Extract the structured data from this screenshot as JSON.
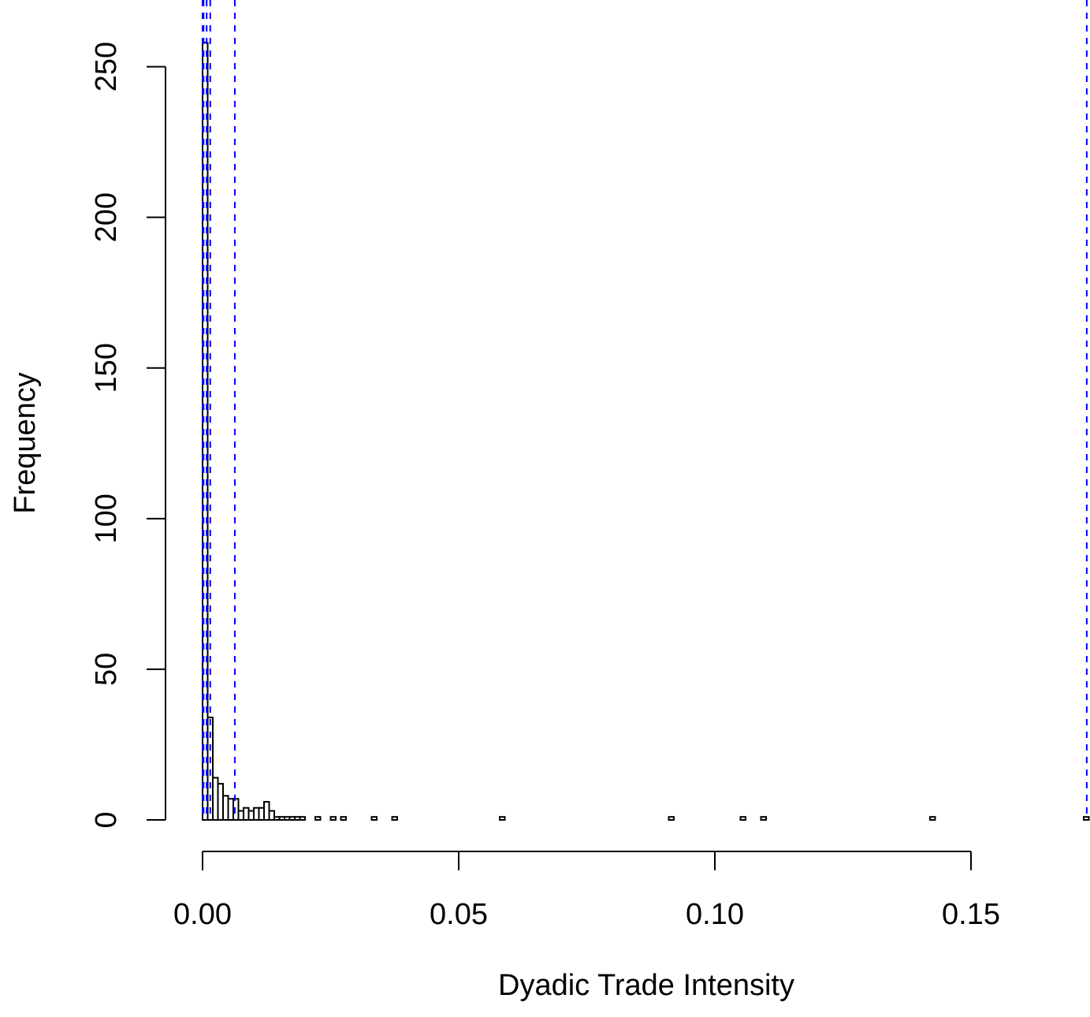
{
  "chart_data": {
    "type": "histogram",
    "x_label": "Dyadic Trade Intensity",
    "y_label": "Frequency",
    "bins": [
      0,
      0.001,
      0.002,
      0.003,
      0.004,
      0.005,
      0.006,
      0.007,
      0.008,
      0.009,
      0.01,
      0.011,
      0.012,
      0.013,
      0.014,
      0.015,
      0.016,
      0.017,
      0.018,
      0.019,
      0.02,
      0.021,
      0.022,
      0.023,
      0.024,
      0.025,
      0.026,
      0.027,
      0.028,
      0.029,
      0.03,
      0.031,
      0.032,
      0.033,
      0.034,
      0.035,
      0.036,
      0.037,
      0.038,
      0.039,
      0.04,
      0.041,
      0.042,
      0.043,
      0.044,
      0.045,
      0.046,
      0.047,
      0.048,
      0.049,
      0.05,
      0.051,
      0.052,
      0.053,
      0.054,
      0.055,
      0.056,
      0.057,
      0.058,
      0.059,
      0.06,
      0.061,
      0.062,
      0.063,
      0.064,
      0.065,
      0.066,
      0.067,
      0.068,
      0.069,
      0.07,
      0.071,
      0.072,
      0.073,
      0.074,
      0.075,
      0.076,
      0.077,
      0.078,
      0.079,
      0.08,
      0.081,
      0.082,
      0.083,
      0.084,
      0.085,
      0.086,
      0.087,
      0.088,
      0.089,
      0.09,
      0.091,
      0.092,
      0.093,
      0.094,
      0.095,
      0.096,
      0.097,
      0.098,
      0.099,
      0.1,
      0.101,
      0.102,
      0.103,
      0.104,
      0.105,
      0.106,
      0.107,
      0.108,
      0.109,
      0.11,
      0.111,
      0.112,
      0.113,
      0.114,
      0.115,
      0.116,
      0.117,
      0.118,
      0.119,
      0.12,
      0.121,
      0.122,
      0.123,
      0.124,
      0.125,
      0.126,
      0.127,
      0.128,
      0.129,
      0.13,
      0.131,
      0.132,
      0.133,
      0.134,
      0.135,
      0.136,
      0.137,
      0.138,
      0.139,
      0.14,
      0.141,
      0.142,
      0.143,
      0.144,
      0.145,
      0.146,
      0.147,
      0.148,
      0.149,
      0.15,
      0.151,
      0.152,
      0.153,
      0.154,
      0.155,
      0.156,
      0.157,
      0.158,
      0.159,
      0.16,
      0.161,
      0.162,
      0.163,
      0.164,
      0.165,
      0.166,
      0.167,
      0.168,
      0.169,
      0.17,
      0.171,
      0.172,
      0.173
    ],
    "values": [
      258,
      34,
      14,
      12,
      8,
      7,
      7,
      3,
      4,
      3,
      4,
      4,
      6,
      3,
      1,
      1,
      1,
      1,
      1,
      1,
      0,
      0,
      1,
      0,
      0,
      1,
      0,
      1,
      0,
      0,
      0,
      0,
      0,
      1,
      0,
      0,
      0,
      1,
      0,
      0,
      0,
      0,
      0,
      0,
      0,
      0,
      0,
      0,
      0,
      0,
      0,
      0,
      0,
      0,
      0,
      0,
      0,
      0,
      1,
      0,
      0,
      0,
      0,
      0,
      0,
      0,
      0,
      0,
      0,
      0,
      0,
      0,
      0,
      0,
      0,
      0,
      0,
      0,
      0,
      0,
      0,
      0,
      0,
      0,
      0,
      0,
      0,
      0,
      0,
      0,
      0,
      1,
      0,
      0,
      0,
      0,
      0,
      0,
      0,
      0,
      0,
      0,
      0,
      0,
      0,
      1,
      0,
      0,
      0,
      1,
      0,
      0,
      0,
      0,
      0,
      0,
      0,
      0,
      0,
      0,
      0,
      0,
      0,
      0,
      0,
      0,
      0,
      0,
      0,
      0,
      0,
      0,
      0,
      0,
      0,
      0,
      0,
      0,
      0,
      0,
      0,
      0,
      1,
      0,
      0,
      0,
      0,
      0,
      0,
      0,
      0,
      0,
      0,
      0,
      0,
      0,
      0,
      0,
      0,
      0,
      0,
      0,
      0,
      0,
      0,
      0,
      0,
      0,
      0,
      0,
      0,
      0,
      1
    ],
    "color": "#ffffff",
    "vlines": [
      0,
      0.0002,
      0.0008,
      0.0015,
      0.0063,
      0.1726
    ],
    "vline_color": "#0000ff",
    "xlim": [
      0,
      0.173
    ],
    "ylim": [
      0,
      258
    ],
    "xticks": [
      {
        "value": 0,
        "label": "0.00"
      },
      0.05,
      {
        "value": 0.1,
        "label": "0.10"
      },
      0.15
    ],
    "yticks": [
      0,
      50,
      100,
      150,
      200,
      250
    ]
  }
}
